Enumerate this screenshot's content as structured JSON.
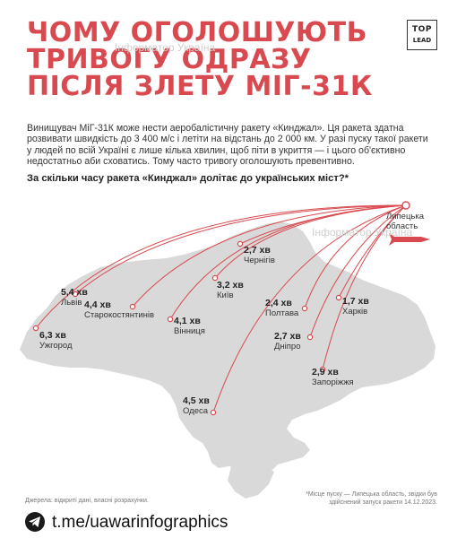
{
  "headline": {
    "line1": "ЧОМУ ОГОЛОШУЮТЬ",
    "line2": "ТРИВОГУ ОДРАЗУ",
    "line3": "ПІСЛЯ ЗЛЕТУ МІГ-31К"
  },
  "watermark": "Інформатор Україна",
  "logo": {
    "line1": "TOP",
    "line2": "LEAD"
  },
  "intro": "Винищувач МіГ-31К може нести аеробалістичну ракету «Кинджал». Ця ракета здатна розвивати швидкість до 3 400 м/с і летіти на відстань до 2 000 км. У разі пуску такої ракети у людей по всій Україні є лише кілька хвилин, щоб піти в укриття — і цього об'єктивно недостатньо аби сховатись. Тому часто тривогу оголошують превентивно.",
  "question": "За скільки часу ракета «Кинджал» долітає до українських міст?*",
  "origin": {
    "line1": "Липецька",
    "line2": "область"
  },
  "cities": [
    {
      "name": "Чернігів",
      "time": "2,7 хв"
    },
    {
      "name": "Київ",
      "time": "3,2 хв"
    },
    {
      "name": "Харків",
      "time": "1,7 хв"
    },
    {
      "name": "Полтава",
      "time": "2,4 хв"
    },
    {
      "name": "Дніпро",
      "time": "2,7 хв"
    },
    {
      "name": "Запоріжжя",
      "time": "2,9 хв"
    },
    {
      "name": "Львів",
      "time": "5,4 хв"
    },
    {
      "name": "Старокостянтинів",
      "time": "4,4 хв"
    },
    {
      "name": "Вінниця",
      "time": "4,1 хв"
    },
    {
      "name": "Ужгород",
      "time": "6,3 хв"
    },
    {
      "name": "Одеса",
      "time": "4,5 хв"
    }
  ],
  "footnotes": {
    "sources": "Джерела: відкриті дані, власні розрахунки.",
    "launch": "*Місце пуску — Липецька область, звідки був здійснений запуск ракети 14.12.2023."
  },
  "channel": "t.me/uawarinfographics",
  "colors": {
    "accent": "#d84a4f",
    "map": "#d9d9d9",
    "text": "#222222"
  }
}
